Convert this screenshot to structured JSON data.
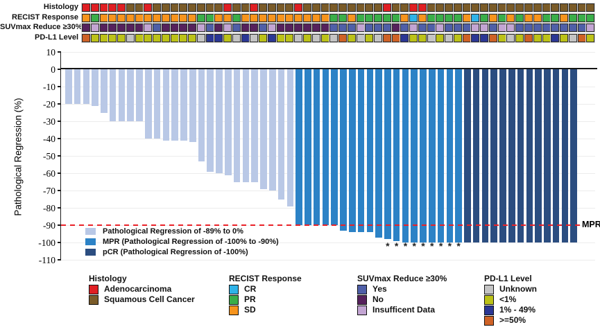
{
  "palette": {
    "adenocarcinoma": "#e01f23",
    "squamous": "#7a5b28",
    "cr": "#2fb3e8",
    "pr": "#3aae49",
    "sd": "#f7941d",
    "suv_yes": "#4f5fa8",
    "suv_no": "#56215c",
    "suv_insufficient": "#c3a5d3",
    "pdl1_unknown": "#c4c4c4",
    "pdl1_lt1": "#bcc218",
    "pdl1_1_49": "#2b3795",
    "pdl1_ge50": "#cf6226",
    "bar_reg": "#b9c8e6",
    "bar_mpr": "#2c82c6",
    "bar_pcr": "#2b4d80",
    "mpr_line": "#ea2127",
    "axis": "#1a1a1a"
  },
  "tracks": {
    "rows": [
      {
        "label": "Histology",
        "color_map": {
          "A": "adenocarcinoma",
          "S": "squamous"
        },
        "codes": [
          "A",
          "A",
          "A",
          "A",
          "A",
          "S",
          "S",
          "A",
          "S",
          "S",
          "S",
          "S",
          "S",
          "S",
          "S",
          "S",
          "A",
          "S",
          "S",
          "A",
          "S",
          "S",
          "S",
          "S",
          "A",
          "S",
          "S",
          "S",
          "S",
          "S",
          "S",
          "S",
          "S",
          "S",
          "A",
          "S",
          "S",
          "A",
          "A",
          "S",
          "S",
          "S",
          "S",
          "S",
          "S",
          "S",
          "S",
          "S",
          "S",
          "S",
          "S",
          "S",
          "S",
          "S",
          "S",
          "S",
          "S",
          "S"
        ]
      },
      {
        "label": "RECIST Response",
        "color_map": {
          "CR": "cr",
          "PR": "pr",
          "SD": "sd"
        },
        "codes": [
          "SD",
          "PR",
          "SD",
          "SD",
          "SD",
          "SD",
          "SD",
          "SD",
          "SD",
          "SD",
          "SD",
          "SD",
          "SD",
          "PR",
          "PR",
          "SD",
          "SD",
          "PR",
          "SD",
          "SD",
          "SD",
          "SD",
          "SD",
          "SD",
          "SD",
          "SD",
          "SD",
          "SD",
          "PR",
          "PR",
          "SD",
          "PR",
          "PR",
          "PR",
          "PR",
          "PR",
          "SD",
          "CR",
          "SD",
          "PR",
          "PR",
          "PR",
          "PR",
          "SD",
          "CR",
          "PR",
          "SD",
          "PR",
          "SD",
          "PR",
          "SD",
          "SD",
          "PR",
          "PR",
          "SD",
          "PR",
          "PR",
          "PR"
        ]
      },
      {
        "label": "SUVmax Reduce ≥30%",
        "color_map": {
          "Y": "suv_yes",
          "N": "suv_no",
          "I": "suv_insufficient"
        },
        "codes": [
          "N",
          "I",
          "N",
          "N",
          "N",
          "N",
          "N",
          "I",
          "Y",
          "N",
          "N",
          "N",
          "N",
          "I",
          "Y",
          "N",
          "I",
          "Y",
          "N",
          "N",
          "Y",
          "I",
          "N",
          "N",
          "N",
          "N",
          "N",
          "N",
          "Y",
          "Y",
          "Y",
          "I",
          "Y",
          "Y",
          "Y",
          "N",
          "Y",
          "I",
          "Y",
          "Y",
          "I",
          "Y",
          "Y",
          "Y",
          "I",
          "I",
          "Y",
          "I",
          "I",
          "Y",
          "Y",
          "Y",
          "Y",
          "Y",
          "Y",
          "Y",
          "Y",
          "I"
        ]
      },
      {
        "label": "PD-L1 Level",
        "color_map": {
          "U": "pdl1_unknown",
          "L": "pdl1_lt1",
          "M": "pdl1_1_49",
          "H": "pdl1_ge50"
        },
        "codes": [
          "H",
          "L",
          "L",
          "L",
          "L",
          "U",
          "L",
          "L",
          "L",
          "L",
          "L",
          "L",
          "L",
          "U",
          "M",
          "M",
          "L",
          "U",
          "M",
          "U",
          "L",
          "M",
          "L",
          "L",
          "U",
          "L",
          "U",
          "L",
          "U",
          "H",
          "L",
          "U",
          "L",
          "U",
          "H",
          "H",
          "M",
          "L",
          "L",
          "U",
          "L",
          "U",
          "L",
          "H",
          "M",
          "M",
          "H",
          "L",
          "U",
          "L",
          "H",
          "L",
          "L",
          "M",
          "L",
          "U",
          "H",
          "L"
        ]
      }
    ]
  },
  "chart_data": {
    "type": "bar",
    "subtype": "waterfall",
    "title": "",
    "xlabel": "",
    "ylabel": "Pathological Regression (%)",
    "ylim": [
      -110,
      10
    ],
    "yticks": [
      10,
      0,
      -10,
      -20,
      -30,
      -40,
      -50,
      -60,
      -70,
      -80,
      -90,
      -100,
      -110
    ],
    "grid": true,
    "values": [
      -20,
      -20,
      -20,
      -21,
      -25,
      -30,
      -30,
      -30,
      -30,
      -40,
      -40,
      -41,
      -41,
      -41,
      -42,
      -53,
      -59,
      -60,
      -61,
      -65,
      -65,
      -65,
      -69,
      -70,
      -75,
      -79,
      -90,
      -90,
      -90,
      -90,
      -90,
      -93,
      -94,
      -94,
      -94,
      -97,
      -98,
      -99,
      -100,
      -100,
      -100,
      -100,
      -100,
      -100,
      -100,
      -100,
      -100,
      -100,
      -100,
      -100,
      -100,
      -100,
      -100,
      -100,
      -100,
      -100,
      -100,
      -100
    ],
    "group_ranges": {
      "reg": [
        1,
        26
      ],
      "mpr": [
        27,
        45
      ],
      "pcr": [
        46,
        58
      ]
    },
    "asterisk_bars": [
      37,
      38,
      39,
      40,
      41,
      42,
      43,
      44,
      45
    ],
    "mpr_line": {
      "y": -90,
      "label": "MPR"
    },
    "legend": [
      {
        "color": "bar_reg",
        "label": "Pathological Regression of -89% to 0%"
      },
      {
        "color": "bar_mpr",
        "label": "MPR (Pathological Regression of -100% to -90%)"
      },
      {
        "color": "bar_pcr",
        "label": "pCR (Pathological Regression of -100%)"
      }
    ]
  },
  "bottom_legend": {
    "groups": [
      {
        "title": "Histology",
        "items": [
          {
            "label": "Adenocarcinoma",
            "color": "adenocarcinoma"
          },
          {
            "label": "Squamous Cell Cancer",
            "color": "squamous"
          }
        ]
      },
      {
        "title": "RECIST Response",
        "items": [
          {
            "label": "CR",
            "color": "cr"
          },
          {
            "label": "PR",
            "color": "pr"
          },
          {
            "label": "SD",
            "color": "sd"
          }
        ]
      },
      {
        "title": "SUVmax Reduce ≥30%",
        "items": [
          {
            "label": "Yes",
            "color": "suv_yes"
          },
          {
            "label": "No",
            "color": "suv_no"
          },
          {
            "label": "Insufficent Data",
            "color": "suv_insufficient"
          }
        ]
      },
      {
        "title": "PD-L1 Level",
        "items": [
          {
            "label": "Unknown",
            "color": "pdl1_unknown"
          },
          {
            "label": "<1%",
            "color": "pdl1_lt1"
          },
          {
            "label": "1% - 49%",
            "color": "pdl1_1_49"
          },
          {
            "label": ">=50%",
            "color": "pdl1_ge50"
          }
        ]
      }
    ]
  }
}
